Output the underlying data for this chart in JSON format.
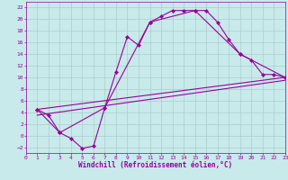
{
  "xlabel": "Windchill (Refroidissement éolien,°C)",
  "bg_color": "#c8eaea",
  "line_color": "#990099",
  "grid_color": "#aacccc",
  "xlim": [
    0,
    23
  ],
  "ylim": [
    -3,
    23
  ],
  "xticks": [
    0,
    1,
    2,
    3,
    4,
    5,
    6,
    7,
    8,
    9,
    10,
    11,
    12,
    13,
    14,
    15,
    16,
    17,
    18,
    19,
    20,
    21,
    22,
    23
  ],
  "yticks": [
    -2,
    0,
    2,
    4,
    6,
    8,
    10,
    12,
    14,
    16,
    18,
    20,
    22
  ],
  "line1_x": [
    1,
    2,
    3,
    4,
    5,
    6,
    7,
    8,
    9,
    10,
    11,
    12,
    13,
    14,
    15,
    16,
    17,
    18,
    19,
    20,
    21,
    22,
    23
  ],
  "line1_y": [
    4.5,
    3.5,
    0.5,
    -0.5,
    -2.2,
    -1.8,
    4.8,
    11.0,
    17.0,
    15.5,
    19.5,
    20.5,
    21.5,
    21.5,
    21.5,
    21.5,
    19.5,
    16.5,
    14.0,
    13.0,
    10.5,
    10.5,
    10.0
  ],
  "line2_x": [
    1,
    3,
    7,
    11,
    15,
    19,
    23
  ],
  "line2_y": [
    4.5,
    0.5,
    4.8,
    19.5,
    21.5,
    14.0,
    10.0
  ],
  "line3_x": [
    1,
    23
  ],
  "line3_y": [
    4.5,
    10.0
  ],
  "line4_x": [
    1,
    23
  ],
  "line4_y": [
    3.5,
    9.5
  ],
  "marker": "D",
  "markersize": 2.2,
  "linewidth": 0.8,
  "xlabel_fontsize": 5.5,
  "tick_fontsize": 4.5
}
